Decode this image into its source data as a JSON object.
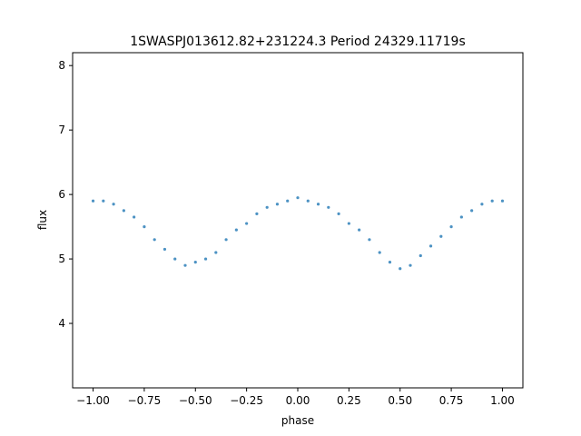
{
  "chart_data": {
    "type": "scatter",
    "title": "1SWASPJ013612.82+231224.3 Period 24329.11719s",
    "xlabel": "phase",
    "ylabel": "flux",
    "xlim": [
      -1.1,
      1.1
    ],
    "ylim": [
      3.0,
      8.2
    ],
    "xticks": [
      -1.0,
      -0.75,
      -0.5,
      -0.25,
      0.0,
      0.25,
      0.5,
      0.75,
      1.0
    ],
    "xtick_labels": [
      "−1.00",
      "−0.75",
      "−0.50",
      "−0.25",
      "0.00",
      "0.25",
      "0.50",
      "0.75",
      "1.00"
    ],
    "yticks": [
      4,
      5,
      6,
      7,
      8
    ],
    "ytick_labels": [
      "4",
      "5",
      "6",
      "7",
      "8"
    ],
    "grid": false,
    "legend": "none",
    "point_color": "#1f77b4",
    "series": [
      {
        "x": [
          -1.0,
          -0.95,
          -0.9,
          -0.85,
          -0.8,
          -0.75,
          -0.7,
          -0.65,
          -0.6,
          -0.55,
          -0.5,
          -0.45,
          -0.4,
          -0.35,
          -0.3,
          -0.25,
          -0.2,
          -0.15,
          -0.1,
          -0.05,
          0.0,
          0.05,
          0.1,
          0.15,
          0.2,
          0.25,
          0.3,
          0.35,
          0.4,
          0.45,
          0.5,
          0.55,
          0.6,
          0.65,
          0.7,
          0.75,
          0.8,
          0.85,
          0.9,
          0.95,
          1.0
        ],
        "y": [
          5.9,
          5.9,
          5.85,
          5.75,
          5.65,
          5.5,
          5.3,
          5.15,
          5.0,
          4.9,
          4.95,
          5.0,
          5.1,
          5.3,
          5.45,
          5.55,
          5.7,
          5.8,
          5.85,
          5.9,
          5.95,
          5.9,
          5.85,
          5.8,
          5.7,
          5.55,
          5.45,
          5.3,
          5.1,
          4.95,
          4.85,
          4.9,
          5.05,
          5.2,
          5.35,
          5.5,
          5.65,
          5.75,
          5.85,
          5.9,
          5.9
        ]
      }
    ]
  }
}
